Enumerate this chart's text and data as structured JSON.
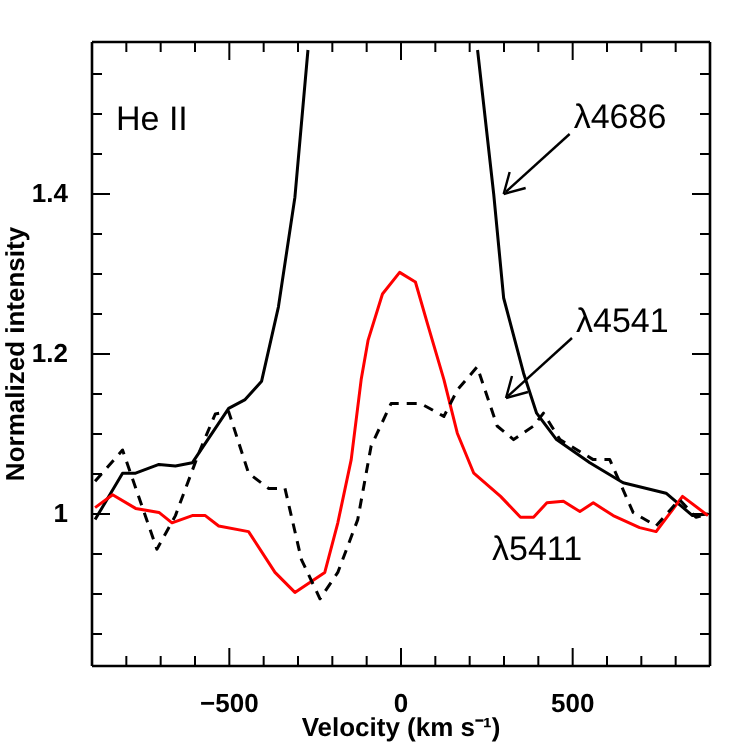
{
  "chart_data": {
    "type": "line",
    "xlabel": "Velocity (km s⁻¹)",
    "ylabel": "Normalized intensity",
    "xlim": [
      -900,
      900
    ],
    "ylim": [
      0.81,
      1.59
    ],
    "xticks": [
      {
        "value": -800,
        "label": null
      },
      {
        "value": -700,
        "label": null
      },
      {
        "value": -600,
        "label": null
      },
      {
        "value": -500,
        "label": "−500"
      },
      {
        "value": -400,
        "label": null
      },
      {
        "value": -300,
        "label": null
      },
      {
        "value": -200,
        "label": null
      },
      {
        "value": -100,
        "label": null
      },
      0,
      {
        "value": 100,
        "label": null
      },
      {
        "value": 200,
        "label": null
      },
      {
        "value": 300,
        "label": null
      },
      {
        "value": 400,
        "label": null
      },
      500,
      {
        "value": 600,
        "label": null
      },
      {
        "value": 700,
        "label": null
      },
      {
        "value": 800,
        "label": null
      }
    ],
    "yticks": [
      {
        "value": 0.85,
        "label": null
      },
      {
        "value": 0.9,
        "label": null
      },
      {
        "value": 0.95,
        "label": null
      },
      1,
      {
        "value": 1.05,
        "label": null
      },
      {
        "value": 1.1,
        "label": null
      },
      {
        "value": 1.15,
        "label": null
      },
      1.2,
      {
        "value": 1.25,
        "label": null
      },
      {
        "value": 1.3,
        "label": null
      },
      {
        "value": 1.35,
        "label": null
      },
      1.4,
      {
        "value": 1.45,
        "label": null
      },
      {
        "value": 1.5,
        "label": null
      },
      {
        "value": 1.55,
        "label": null
      }
    ],
    "grid": false,
    "marker": "none",
    "series": [
      {
        "color": "#000000",
        "line_style": "solid",
        "x": [
          -891,
          -811,
          -773,
          -705,
          -657,
          -608,
          -502,
          -454,
          -406,
          -357,
          -309,
          -271,
          0,
          223,
          270,
          299,
          357,
          395,
          453,
          550,
          647,
          772,
          849,
          894
        ],
        "values": [
          0.993,
          1.051,
          1.051,
          1.062,
          1.06,
          1.064,
          1.132,
          1.143,
          1.166,
          1.259,
          1.396,
          1.58,
          null,
          1.58,
          1.4,
          1.27,
          1.176,
          1.126,
          1.093,
          1.064,
          1.039,
          1.026,
          0.998,
          1.0
        ]
      },
      {
        "color": "#ff0000",
        "line_style": "solid",
        "x": [
          -891,
          -840,
          -773,
          -705,
          -667,
          -608,
          -570,
          -531,
          -444,
          -367,
          -309,
          -222,
          -184,
          -145,
          -116,
          -96,
          -54,
          -4,
          42,
          77,
          125,
          164,
          212,
          290,
          348,
          386,
          425,
          473,
          521,
          560,
          618,
          695,
          743,
          820,
          894
        ],
        "values": [
          1.008,
          1.024,
          1.007,
          1.002,
          0.989,
          0.998,
          0.998,
          0.985,
          0.978,
          0.927,
          0.902,
          0.927,
          0.989,
          1.068,
          1.168,
          1.217,
          1.275,
          1.302,
          1.29,
          1.238,
          1.168,
          1.101,
          1.051,
          1.022,
          0.996,
          0.996,
          1.014,
          1.016,
          1.003,
          1.014,
          0.998,
          0.983,
          0.978,
          1.022,
          0.998
        ]
      },
      {
        "color": "#000000",
        "line_style": "dashed",
        "x": [
          -891,
          -811,
          -711,
          -657,
          -589,
          -541,
          -502,
          -444,
          -386,
          -338,
          -290,
          -236,
          -184,
          -126,
          -87,
          -29,
          58,
          125,
          164,
          222,
          280,
          328,
          386,
          415,
          463,
          560,
          608,
          676,
          743,
          811,
          859,
          894
        ],
        "values": [
          1.041,
          1.08,
          0.956,
          0.998,
          1.076,
          1.125,
          1.128,
          1.051,
          1.032,
          1.032,
          0.943,
          0.894,
          0.927,
          0.993,
          1.085,
          1.138,
          1.138,
          1.122,
          1.155,
          1.184,
          1.11,
          1.093,
          1.11,
          1.126,
          1.093,
          1.068,
          1.068,
          1.002,
          0.985,
          1.018,
          0.996,
          1.0
        ]
      }
    ],
    "annotations": [
      "He II",
      {
        "text": "λ4686",
        "x": 299,
        "y": 1.4
      },
      "λ4541",
      "λ5411"
    ]
  }
}
